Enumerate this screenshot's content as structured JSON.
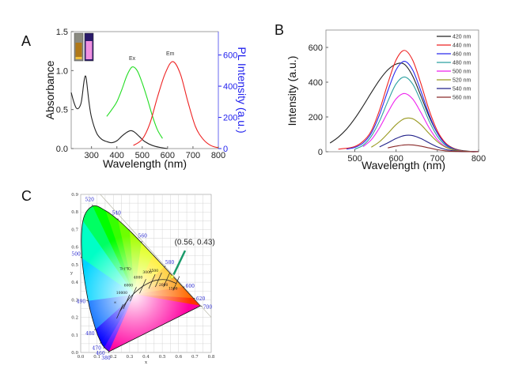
{
  "chart_data": [
    {
      "panel": "A",
      "type": "line",
      "xlabel": "Wavelength (nm)",
      "ylabel": "Absorbance",
      "y2label": "PL Intensity (a.u.)",
      "xlim": [
        220,
        800
      ],
      "ylim": [
        0,
        1.5
      ],
      "y2lim": [
        0,
        750
      ],
      "xticks": [
        "300",
        "400",
        "500",
        "600",
        "700",
        "800"
      ],
      "yticks": [
        "0.0",
        "0.5",
        "1.0",
        "1.5"
      ],
      "y2ticks": [
        "0",
        "200",
        "400",
        "600"
      ],
      "colors": {
        "absorbance": "#222222",
        "ex": "#22dd22",
        "em": "#ee2222",
        "axis2": "#2222ee"
      },
      "annotations": {
        "ex": "Ex",
        "em": "Em"
      },
      "inset": "cuvette photos (daylight / UV)",
      "series": [
        {
          "key": "absorbance",
          "axis": "left",
          "x": [
            220,
            230,
            240,
            250,
            260,
            270,
            275,
            280,
            290,
            300,
            320,
            340,
            360,
            380,
            400,
            420,
            440,
            455,
            470,
            490,
            510,
            540,
            570,
            600
          ],
          "y": [
            0.72,
            0.6,
            0.52,
            0.52,
            0.6,
            0.85,
            0.93,
            0.88,
            0.6,
            0.4,
            0.2,
            0.12,
            0.09,
            0.075,
            0.1,
            0.16,
            0.21,
            0.23,
            0.21,
            0.15,
            0.09,
            0.04,
            0.015,
            0.0
          ]
        },
        {
          "key": "ex",
          "axis": "right",
          "x": [
            360,
            380,
            400,
            420,
            440,
            460,
            480,
            500,
            520,
            540,
            560,
            580
          ],
          "y": [
            206,
            250,
            300,
            380,
            470,
            523,
            500,
            420,
            320,
            210,
            120,
            65
          ]
        },
        {
          "key": "em",
          "axis": "right",
          "x": [
            465,
            500,
            530,
            560,
            590,
            620,
            650,
            680,
            710,
            740,
            770,
            800
          ],
          "y": [
            20,
            60,
            160,
            330,
            480,
            558,
            480,
            300,
            140,
            60,
            20,
            5
          ]
        }
      ]
    },
    {
      "panel": "B",
      "type": "line",
      "xlabel": "Wavelength (nm)",
      "ylabel": "Intensity (a.u.)",
      "xlim": [
        430,
        800
      ],
      "ylim": [
        0,
        700
      ],
      "xticks": [
        "500",
        "600",
        "700",
        "800"
      ],
      "yticks": [
        "0",
        "200",
        "400",
        "600"
      ],
      "legend": "top-right",
      "series": [
        {
          "name": "420 nm",
          "color": "#222222",
          "x": [
            440,
            460,
            480,
            500,
            520,
            540,
            560,
            580,
            600,
            620,
            640,
            660,
            680,
            700,
            720,
            740,
            760,
            780,
            800
          ],
          "y": [
            50,
            84,
            130,
            191,
            263,
            340,
            413,
            471,
            504,
            503,
            436,
            322,
            203,
            108,
            49,
            19,
            7,
            2,
            1
          ]
        },
        {
          "name": "440 nm",
          "color": "#ee2222",
          "x": [
            460,
            480,
            500,
            520,
            540,
            560,
            580,
            600,
            620,
            640,
            660,
            680,
            700,
            720,
            740,
            760,
            780,
            800
          ],
          "y": [
            15,
            20,
            30,
            60,
            120,
            240,
            393,
            528,
            583,
            528,
            393,
            240,
            120,
            50,
            17,
            5,
            1,
            0
          ]
        },
        {
          "name": "460 nm",
          "color": "#2a2aee",
          "x": [
            480,
            500,
            520,
            540,
            560,
            580,
            600,
            620,
            640,
            660,
            680,
            700,
            720,
            740,
            760,
            780,
            800
          ],
          "y": [
            15,
            25,
            50,
            107,
            214,
            350,
            471,
            520,
            471,
            350,
            214,
            107,
            44,
            15,
            4,
            1,
            0
          ]
        },
        {
          "name": "480 nm",
          "color": "#2aa0a0",
          "x": [
            500,
            520,
            540,
            560,
            580,
            600,
            620,
            640,
            660,
            680,
            700,
            720,
            740,
            760,
            780,
            800
          ],
          "y": [
            15,
            37,
            89,
            177,
            290,
            390,
            430,
            390,
            290,
            177,
            89,
            37,
            12,
            3,
            1,
            0
          ]
        },
        {
          "name": "500 nm",
          "color": "#ee22ee",
          "x": [
            520,
            540,
            560,
            580,
            600,
            620,
            640,
            660,
            680,
            700,
            720,
            740,
            760,
            780,
            800
          ],
          "y": [
            29,
            69,
            138,
            226,
            304,
            335,
            304,
            226,
            138,
            69,
            29,
            10,
            3,
            1,
            0
          ]
        },
        {
          "name": "520 nm",
          "color": "#9a9a22",
          "x": [
            540,
            560,
            580,
            600,
            620,
            640,
            660,
            680,
            700,
            720,
            740,
            760,
            780,
            800
          ],
          "y": [
            26,
            58,
            105,
            156,
            190,
            190,
            156,
            105,
            58,
            26,
            10,
            3,
            1,
            0
          ]
        },
        {
          "name": "540 nm",
          "color": "#22228a",
          "x": [
            560,
            580,
            600,
            620,
            640,
            660,
            680,
            700,
            720,
            740,
            760,
            780,
            800
          ],
          "y": [
            28,
            51,
            76,
            93,
            93,
            76,
            51,
            28,
            13,
            5,
            1,
            0,
            0
          ]
        },
        {
          "name": "560 nm",
          "color": "#8a2a2a",
          "x": [
            580,
            600,
            620,
            640,
            660,
            680,
            700,
            720,
            740,
            760,
            780,
            800
          ],
          "y": [
            22,
            32,
            39,
            39,
            32,
            22,
            12,
            5,
            2,
            1,
            0,
            0
          ]
        }
      ]
    },
    {
      "panel": "C",
      "type": "scatter",
      "xlabel": "x",
      "ylabel": "y",
      "xlim": [
        0,
        0.8
      ],
      "ylim": [
        0,
        0.9
      ],
      "grid": true,
      "xticks": [
        "0.0",
        "0.1",
        "0.2",
        "0.3",
        "0.4",
        "0.5",
        "0.6",
        "0.7",
        "0.8"
      ],
      "yticks": [
        "0.0",
        "0.1",
        "0.2",
        "0.3",
        "0.4",
        "0.5",
        "0.6",
        "0.7",
        "0.8",
        "0.9"
      ],
      "point": {
        "x": 0.56,
        "y": 0.43,
        "label": "(0.56, 0.43)",
        "arrow_color": "#1a9a6a"
      },
      "spectral_locus": [
        {
          "nm": 380,
          "x": 0.1741,
          "y": 0.005,
          "label": "380"
        },
        {
          "nm": 460,
          "x": 0.144,
          "y": 0.0297,
          "label": "460"
        },
        {
          "nm": 470,
          "x": 0.1241,
          "y": 0.0578,
          "label": "470"
        },
        {
          "nm": 480,
          "x": 0.0913,
          "y": 0.1327,
          "label": "480"
        },
        {
          "nm": 490,
          "x": 0.0454,
          "y": 0.295,
          "label": "490"
        },
        {
          "nm": 500,
          "x": 0.0082,
          "y": 0.5384,
          "label": "500"
        },
        {
          "nm": 510,
          "x": 0.0139,
          "y": 0.7502,
          "label": ""
        },
        {
          "nm": 520,
          "x": 0.0743,
          "y": 0.8338,
          "label": "520"
        },
        {
          "nm": 530,
          "x": 0.1547,
          "y": 0.8059,
          "label": ""
        },
        {
          "nm": 540,
          "x": 0.2296,
          "y": 0.7543,
          "label": "540"
        },
        {
          "nm": 550,
          "x": 0.3016,
          "y": 0.6923,
          "label": ""
        },
        {
          "nm": 560,
          "x": 0.3731,
          "y": 0.6245,
          "label": "560"
        },
        {
          "nm": 570,
          "x": 0.4441,
          "y": 0.5547,
          "label": ""
        },
        {
          "nm": 580,
          "x": 0.5125,
          "y": 0.4866,
          "label": "580"
        },
        {
          "nm": 590,
          "x": 0.5752,
          "y": 0.4242,
          "label": ""
        },
        {
          "nm": 600,
          "x": 0.627,
          "y": 0.3725,
          "label": "600"
        },
        {
          "nm": 620,
          "x": 0.6915,
          "y": 0.3083,
          "label": "620"
        },
        {
          "nm": 700,
          "x": 0.7347,
          "y": 0.2653,
          "label": "700"
        }
      ],
      "planckian_title": "Tc(°K)",
      "planckian": [
        {
          "x": 0.24,
          "y": 0.234,
          "label": "∞"
        },
        {
          "x": 0.2807,
          "y": 0.2883,
          "label": "10000"
        },
        {
          "x": 0.3221,
          "y": 0.3318,
          "label": "6000"
        },
        {
          "x": 0.3805,
          "y": 0.3768,
          "label": "4000"
        },
        {
          "x": 0.4369,
          "y": 0.4041,
          "label": "3000"
        },
        {
          "x": 0.477,
          "y": 0.4137,
          "label": "2500"
        },
        {
          "x": 0.5267,
          "y": 0.4133,
          "label": "2000"
        },
        {
          "x": 0.5857,
          "y": 0.3931,
          "label": "1500"
        }
      ]
    }
  ],
  "panel_labels": {
    "a": "A",
    "b": "B",
    "c": "C"
  }
}
